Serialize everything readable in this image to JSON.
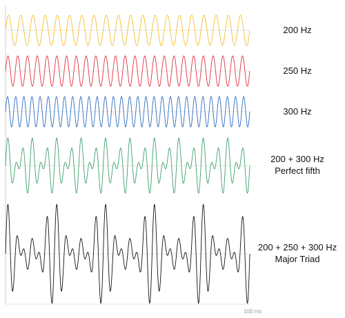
{
  "chart_data": {
    "type": "line",
    "x_end_label": "100 ms",
    "x_range_ms": [
      0,
      100
    ],
    "series": [
      {
        "label_lines": [
          "200 Hz"
        ],
        "components_hz": [
          200
        ],
        "color": "#f2be2c"
      },
      {
        "label_lines": [
          "250 Hz"
        ],
        "components_hz": [
          250
        ],
        "color": "#e0303f"
      },
      {
        "label_lines": [
          "300 Hz"
        ],
        "components_hz": [
          300
        ],
        "color": "#2e6bbf"
      },
      {
        "label_lines": [
          "200 + 300 Hz",
          "Perfect fifth"
        ],
        "components_hz": [
          200,
          300
        ],
        "color": "#3d9f6c"
      },
      {
        "label_lines": [
          "200 + 250 + 300 Hz",
          "Major Triad"
        ],
        "components_hz": [
          200,
          250,
          300
        ],
        "color": "#111111"
      }
    ]
  }
}
